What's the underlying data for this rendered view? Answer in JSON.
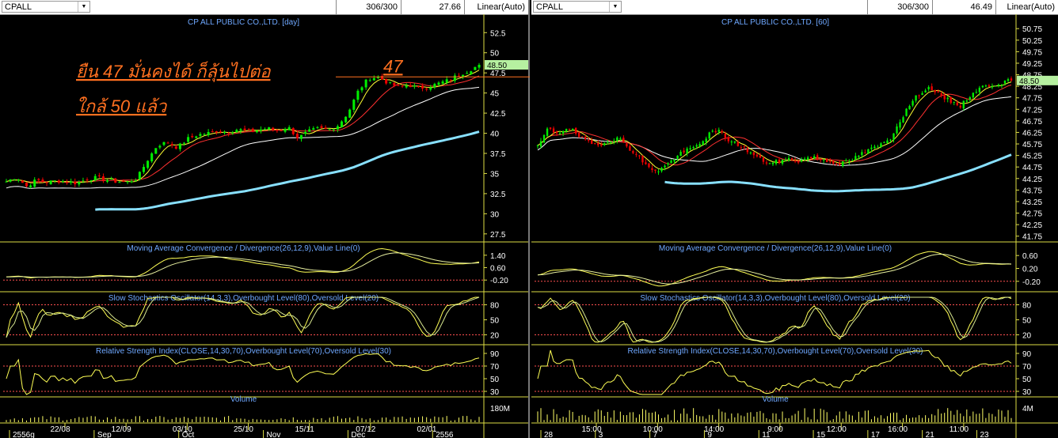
{
  "panels": [
    {
      "symbol": "CPALL",
      "counter": "306/300",
      "price": "27.66",
      "scale_mode": "Linear(Auto)",
      "main_title": "CP ALL PUBLIC CO.,LTD. [day]",
      "annotation_line1": "ยืน 47 มั่นคงได้ ก็ลุ้นไปต่อ",
      "annotation_line2": "ใกล้ 50 แล้ว",
      "annotation_level_label": "47",
      "current_price_label": "48.50",
      "price_ticks": [
        "52.5",
        "50",
        "47.5",
        "45",
        "42.5",
        "40",
        "37.5",
        "35",
        "32.5",
        "30",
        "27.5"
      ],
      "macd_title": "Moving Average Convergence / Divergence(26,12,9),Value Line(0)",
      "macd_ticks": [
        "1.40",
        "0.60",
        "-0.20"
      ],
      "stoch_title": "Slow Stochastics Oscillator(14,3,3),Overbought Level(80),Oversold Level(20)",
      "stoch_ticks": [
        "80",
        "50",
        "20"
      ],
      "rsi_title": "Relative Strength Index(CLOSE,14,30,70),Overbought Level(70),Oversold Level(30)",
      "rsi_ticks": [
        "90",
        "70",
        "50",
        "30"
      ],
      "volume_title": "Volume",
      "volume_ticks": [
        "180M"
      ],
      "date_ticks": [
        "22/08",
        "12/09",
        "03/10",
        "25/10",
        "15/11",
        "07/12",
        "02/01"
      ],
      "month_ticks": [
        "2556g",
        "Sep",
        "Oct",
        "Nov",
        "Dec",
        "2556"
      ],
      "chart_data": {
        "type": "candlestick",
        "title": "CP ALL PUBLIC CO.,LTD. [day]",
        "ylim": [
          26.5,
          54
        ],
        "annotation_level": 47,
        "last": 48.5,
        "close_path": [
          34.0,
          34.6,
          33.4,
          34.2,
          33.9,
          34.1,
          34.0,
          33.8,
          34.3,
          34.5,
          34.2,
          34.0,
          33.9,
          34.4,
          36.6,
          38.5,
          38.9,
          38.2,
          39.3,
          39.8,
          40.0,
          40.3,
          40.1,
          40.5,
          40.2,
          40.4,
          40.6,
          40.3,
          40.8,
          39.4,
          40.2,
          40.6,
          40.4,
          41.0,
          42.6,
          45.3,
          46.8,
          47.0,
          46.2,
          45.7,
          46.0,
          45.6,
          45.8,
          46.2,
          46.6,
          47.3,
          47.8,
          48.5
        ]
      }
    },
    {
      "symbol": "CPALL",
      "counter": "306/300",
      "price": "46.49",
      "scale_mode": "Linear(Auto)",
      "main_title": "CP ALL PUBLIC CO.,LTD. [60]",
      "current_price_label": "48.50",
      "price_ticks": [
        "50.75",
        "50.25",
        "49.75",
        "49.25",
        "48.75",
        "48.25",
        "47.75",
        "47.25",
        "46.75",
        "46.25",
        "45.75",
        "45.25",
        "44.75",
        "44.25",
        "43.75",
        "43.25",
        "42.75",
        "42.25",
        "41.75"
      ],
      "macd_title": "Moving Average Convergence / Divergence(26,12,9),Value Line(0)",
      "macd_ticks": [
        "0.60",
        "0.20",
        "-0.20"
      ],
      "stoch_title": "Slow Stochastics Oscillator(14,3,3),Overbought Level(80),Oversold Level(20)",
      "stoch_ticks": [
        "80",
        "50",
        "20"
      ],
      "rsi_title": "Relative Strength Index(CLOSE,14,30,70),Overbought Level(70),Oversold Level(30)",
      "rsi_ticks": [
        "90",
        "70",
        "50",
        "30"
      ],
      "volume_title": "Volume",
      "volume_ticks": [
        "4M"
      ],
      "date_ticks": [
        "15:00",
        "10:00",
        "14:00",
        "9:00",
        "12:00",
        "16:00",
        "11:00"
      ],
      "month_ticks": [
        "28",
        "3",
        "7",
        "9",
        "11",
        "15",
        "17",
        "21",
        "23"
      ],
      "chart_data": {
        "type": "candlestick",
        "title": "CP ALL PUBLIC CO.,LTD. [60]",
        "ylim": [
          41.5,
          51.1
        ],
        "last": 48.5,
        "close_path": [
          45.6,
          46.4,
          46.2,
          46.5,
          46.1,
          45.8,
          45.7,
          45.9,
          46.0,
          45.6,
          45.2,
          44.7,
          44.6,
          44.9,
          45.3,
          45.5,
          45.7,
          46.2,
          46.3,
          45.9,
          45.7,
          45.4,
          45.1,
          44.9,
          45.0,
          45.1,
          45.0,
          45.2,
          45.1,
          45.0,
          44.9,
          45.0,
          45.3,
          45.5,
          45.7,
          46.0,
          46.8,
          47.5,
          48.0,
          48.2,
          47.8,
          47.6,
          47.4,
          47.9,
          48.2,
          48.3,
          48.4,
          48.5
        ]
      }
    }
  ],
  "colors": {
    "background": "#000000",
    "up": "#00ee00",
    "down": "#ee0000",
    "ma_short": "#ffff33",
    "ma_mid": "#ff3030",
    "ma_long": "#ffffff",
    "ma_xlong": "#88e0ff",
    "title": "#6fa8ff",
    "axis": "#dddd44",
    "annotation": "#ff7020",
    "level_line": "#ff7020",
    "dotted_level": "#ff5050"
  }
}
